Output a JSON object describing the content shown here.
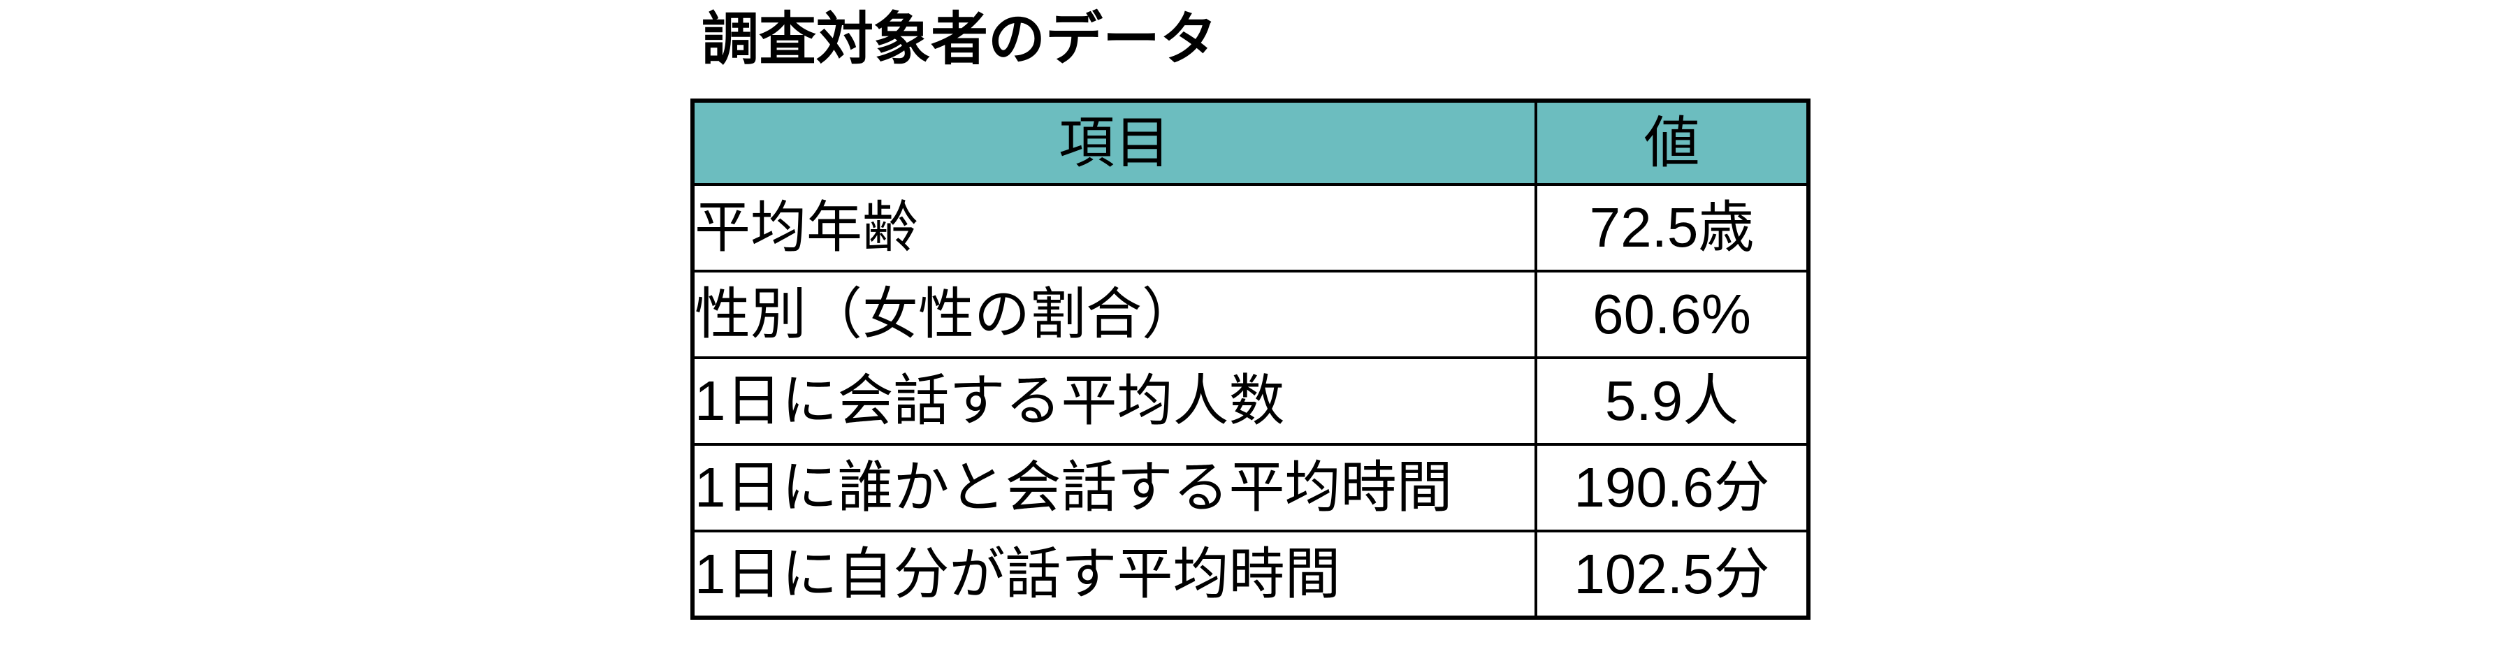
{
  "title": "調査対象者のデータ",
  "table": {
    "headers": {
      "item": "項目",
      "value": "値"
    },
    "rows": [
      {
        "item": "平均年齢",
        "value": "72.5歳"
      },
      {
        "item": "性別（女性の割合）",
        "value": "60.6%"
      },
      {
        "item": "1日に会話する平均人数",
        "value": "5.9人"
      },
      {
        "item": "1日に誰かと会話する平均時間",
        "value": "190.6分"
      },
      {
        "item": "1日に自分が話す平均時間",
        "value": "102.5分"
      }
    ]
  },
  "colors": {
    "header_bg": "#6CBDBF",
    "border": "#000000",
    "text": "#000000",
    "background": "#FFFFFF"
  },
  "chart_data": {
    "type": "table",
    "title": "調査対象者のデータ",
    "columns": [
      "項目",
      "値"
    ],
    "rows": [
      [
        "平均年齢",
        "72.5歳"
      ],
      [
        "性別（女性の割合）",
        "60.6%"
      ],
      [
        "1日に会話する平均人数",
        "5.9人"
      ],
      [
        "1日に誰かと会話する平均時間",
        "190.6分"
      ],
      [
        "1日に自分が話す平均時間",
        "102.5分"
      ]
    ],
    "values_numeric": [
      72.5,
      60.6,
      5.9,
      190.6,
      102.5
    ],
    "units": [
      "歳",
      "%",
      "人",
      "分",
      "分"
    ]
  }
}
